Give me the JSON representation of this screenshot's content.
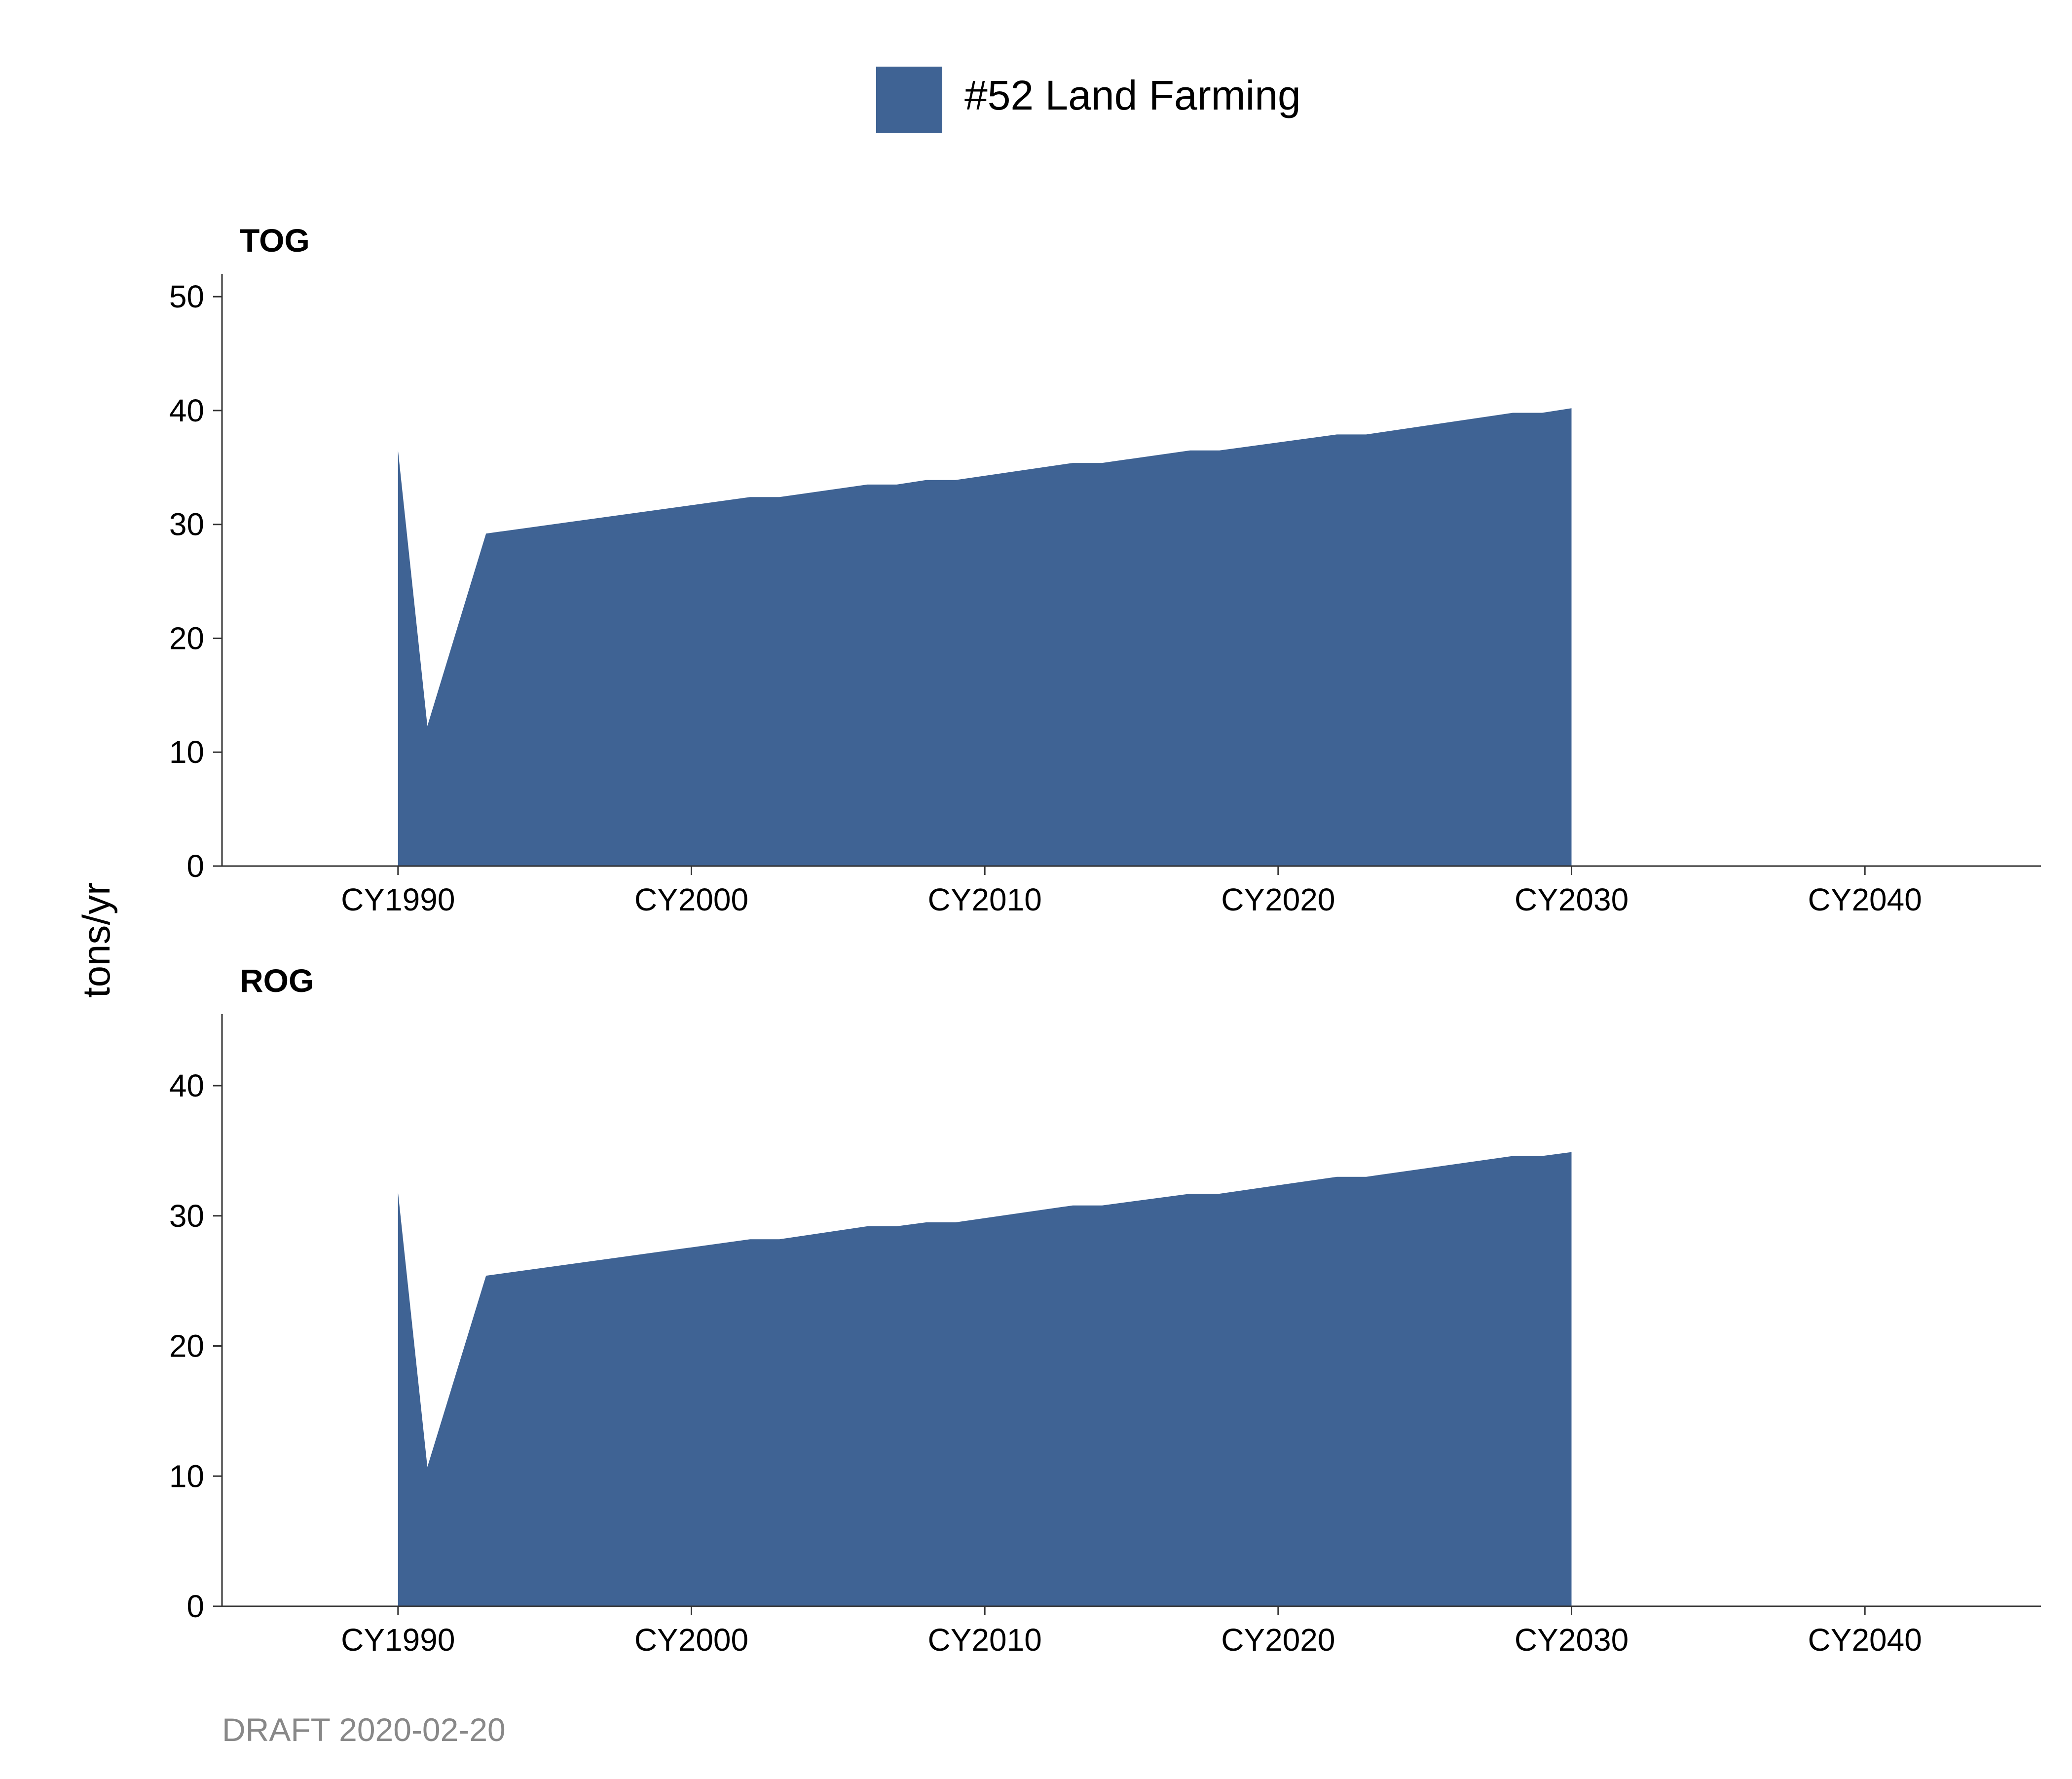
{
  "legend": {
    "label": "#52 Land Farming",
    "color": "#3f6394"
  },
  "ylabel": "tons/yr",
  "footer": "DRAFT 2020-02-20",
  "chart_data": [
    {
      "type": "area",
      "title": "TOG",
      "ylabel": "tons/yr",
      "xlim": [
        1984,
        2046
      ],
      "ylim": [
        0,
        52
      ],
      "yticks": [
        0,
        10,
        20,
        30,
        40,
        50
      ],
      "xticks": [
        1990,
        2000,
        2010,
        2020,
        2030,
        2040
      ],
      "xtick_labels": [
        "CY1990",
        "CY2000",
        "CY2010",
        "CY2020",
        "CY2030",
        "CY2040"
      ],
      "grid": false,
      "series": [
        {
          "name": "#52 Land Farming",
          "x": [
            1990,
            1991,
            1993,
            2002,
            2003,
            2006,
            2007,
            2008,
            2009,
            2013,
            2014,
            2017,
            2018,
            2022,
            2023,
            2028,
            2029,
            2030
          ],
          "values": [
            36.5,
            12.3,
            29.2,
            32.4,
            32.4,
            33.5,
            33.5,
            33.9,
            33.9,
            35.4,
            35.4,
            36.5,
            36.5,
            37.9,
            37.9,
            39.8,
            39.8,
            40.2
          ]
        }
      ]
    },
    {
      "type": "area",
      "title": "ROG",
      "ylabel": "tons/yr",
      "xlim": [
        1984,
        2046
      ],
      "ylim": [
        0,
        45.5
      ],
      "yticks": [
        0,
        10,
        20,
        30,
        40
      ],
      "xticks": [
        1990,
        2000,
        2010,
        2020,
        2030,
        2040
      ],
      "xtick_labels": [
        "CY1990",
        "CY2000",
        "CY2010",
        "CY2020",
        "CY2030",
        "CY2040"
      ],
      "grid": false,
      "series": [
        {
          "name": "#52 Land Farming",
          "x": [
            1990,
            1991,
            1993,
            2002,
            2003,
            2006,
            2007,
            2008,
            2009,
            2013,
            2014,
            2017,
            2018,
            2022,
            2023,
            2028,
            2029,
            2030
          ],
          "values": [
            31.8,
            10.7,
            25.4,
            28.2,
            28.2,
            29.2,
            29.2,
            29.5,
            29.5,
            30.8,
            30.8,
            31.7,
            31.7,
            33.0,
            33.0,
            34.6,
            34.6,
            34.9
          ]
        }
      ]
    }
  ]
}
